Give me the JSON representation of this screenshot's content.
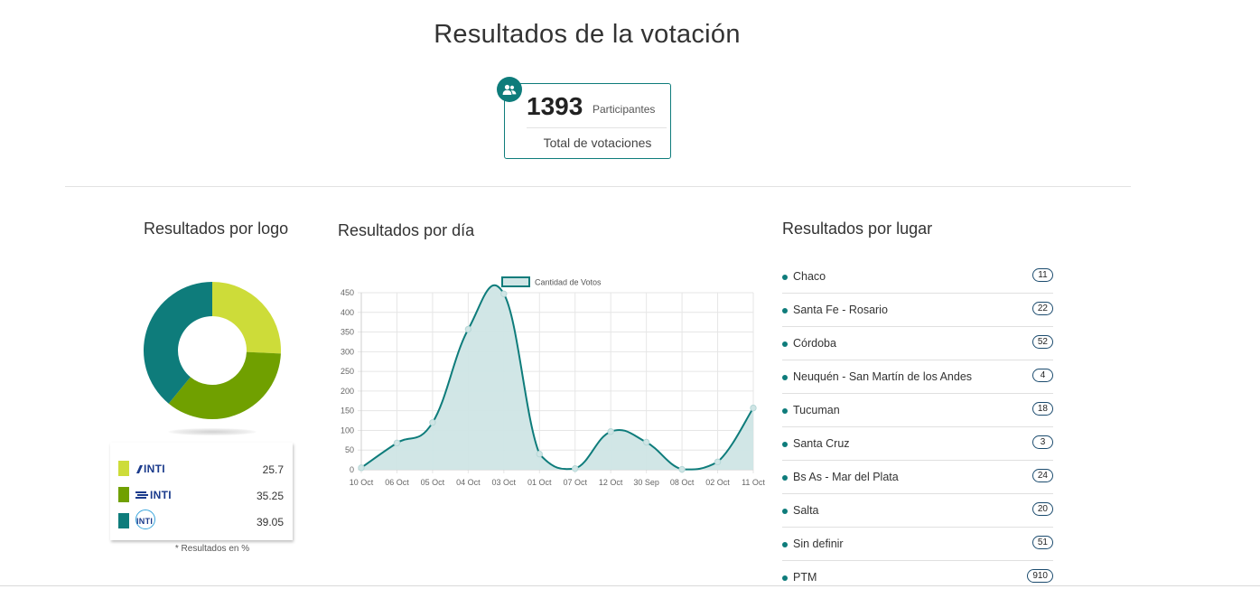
{
  "page": {
    "title": "Resultados de la votación"
  },
  "totals": {
    "participants": "1393",
    "participants_label": "Participantes",
    "votes_label": "Total de votaciones",
    "icon": "users-icon"
  },
  "sections": {
    "logo": "Resultados por logo",
    "day": "Resultados por día",
    "place": "Resultados por lugar"
  },
  "logo_results": {
    "note": "* Resultados en %",
    "items": [
      {
        "logo_text": "INTI",
        "value": "25.7",
        "color": "#cddc39"
      },
      {
        "logo_text": "INTI",
        "value": "35.25",
        "color": "#70a000"
      },
      {
        "logo_text": "INTI",
        "value": "39.05",
        "color": "#0e7c7b"
      }
    ]
  },
  "chart_data": [
    {
      "type": "pie",
      "categories": [
        "INTI",
        "INTI",
        "INTI"
      ],
      "values": [
        25.7,
        35.25,
        39.05
      ],
      "colors": [
        "#cddc39",
        "#70a000",
        "#0e7c7b"
      ]
    },
    {
      "type": "area",
      "categories": [
        "10 Oct",
        "06 Oct",
        "05 Oct",
        "04 Oct",
        "03 Oct",
        "01 Oct",
        "07 Oct",
        "12 Oct",
        "30 Sep",
        "08 Oct",
        "02 Oct",
        "11 Oct"
      ],
      "series": [
        {
          "name": "Cantidad de Votos",
          "values": [
            5,
            68,
            120,
            357,
            447,
            40,
            3,
            97,
            70,
            1,
            20,
            157
          ]
        }
      ],
      "ylim": [
        0,
        450
      ],
      "yticks": [
        0,
        50,
        100,
        150,
        200,
        250,
        300,
        350,
        400,
        450
      ],
      "grid": true,
      "legend": "top",
      "line_color": "#0e7c7b",
      "fill_color": "#cfe5e5"
    }
  ],
  "places": [
    {
      "name": "Chaco",
      "count": "11"
    },
    {
      "name": "Santa Fe - Rosario",
      "count": "22"
    },
    {
      "name": "Córdoba",
      "count": "52"
    },
    {
      "name": "Neuquén - San Martín de los Andes",
      "count": "4"
    },
    {
      "name": "Tucuman",
      "count": "18"
    },
    {
      "name": "Santa Cruz",
      "count": "3"
    },
    {
      "name": "Bs As - Mar del Plata",
      "count": "24"
    },
    {
      "name": "Salta",
      "count": "20"
    },
    {
      "name": "Sin definir",
      "count": "51"
    },
    {
      "name": "PTM",
      "count": "910"
    }
  ]
}
